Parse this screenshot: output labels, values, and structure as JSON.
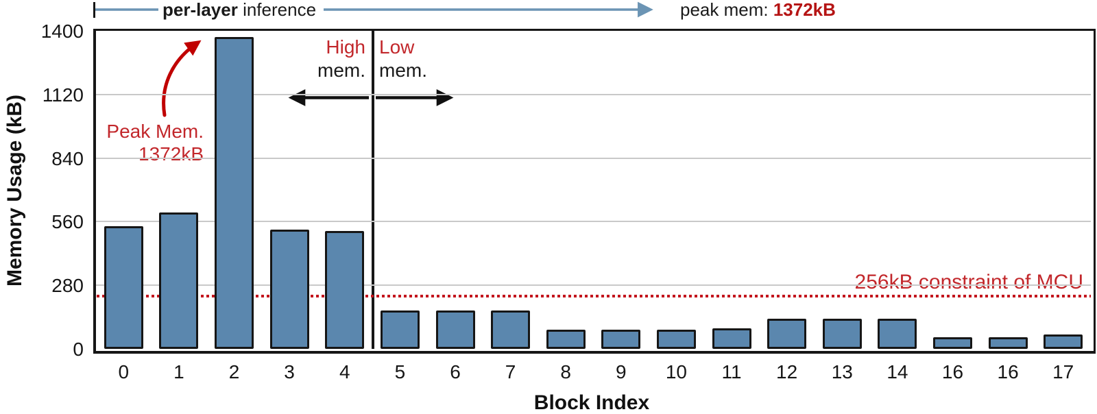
{
  "header": {
    "range_label_bold": "per-layer",
    "range_label_rest": " inference",
    "peak_label": "peak mem: ",
    "peak_value": "1372kB"
  },
  "annotations": {
    "peak_callout_line1": "Peak Mem.",
    "peak_callout_line2": "1372kB",
    "high_region_word": "High",
    "high_region_word2": "mem.",
    "low_region_word": "Low",
    "low_region_word2": "mem.",
    "constraint_label": "256kB constraint of MCU"
  },
  "colors": {
    "bar_fill": "#5b87ae",
    "bar_stroke": "#161616",
    "accent_red": "#c2272b",
    "dark_red": "#b51414",
    "dotted_red": "#c3161d",
    "arrow_blue": "#6b94b4",
    "grid_gray": "#c9c9c9"
  },
  "chart_data": {
    "type": "bar",
    "title": "",
    "xlabel": "Block Index",
    "ylabel": "Memory Usage (kB)",
    "categories": [
      "0",
      "1",
      "2",
      "3",
      "4",
      "5",
      "6",
      "7",
      "8",
      "9",
      "10",
      "11",
      "12",
      "13",
      "14",
      "16",
      "16",
      "17"
    ],
    "values": [
      540,
      600,
      1372,
      525,
      520,
      170,
      170,
      170,
      85,
      85,
      85,
      90,
      132,
      132,
      132,
      52,
      52,
      63
    ],
    "ylim": [
      0,
      1400
    ],
    "yticks": [
      0,
      280,
      560,
      840,
      1120,
      1400
    ],
    "grid": true,
    "legend": "none",
    "peak_kB": 1372,
    "peak_block_index": "2",
    "constraint_kB": 256,
    "high_mem_blocks": "0-4",
    "low_mem_blocks": "5-17"
  }
}
